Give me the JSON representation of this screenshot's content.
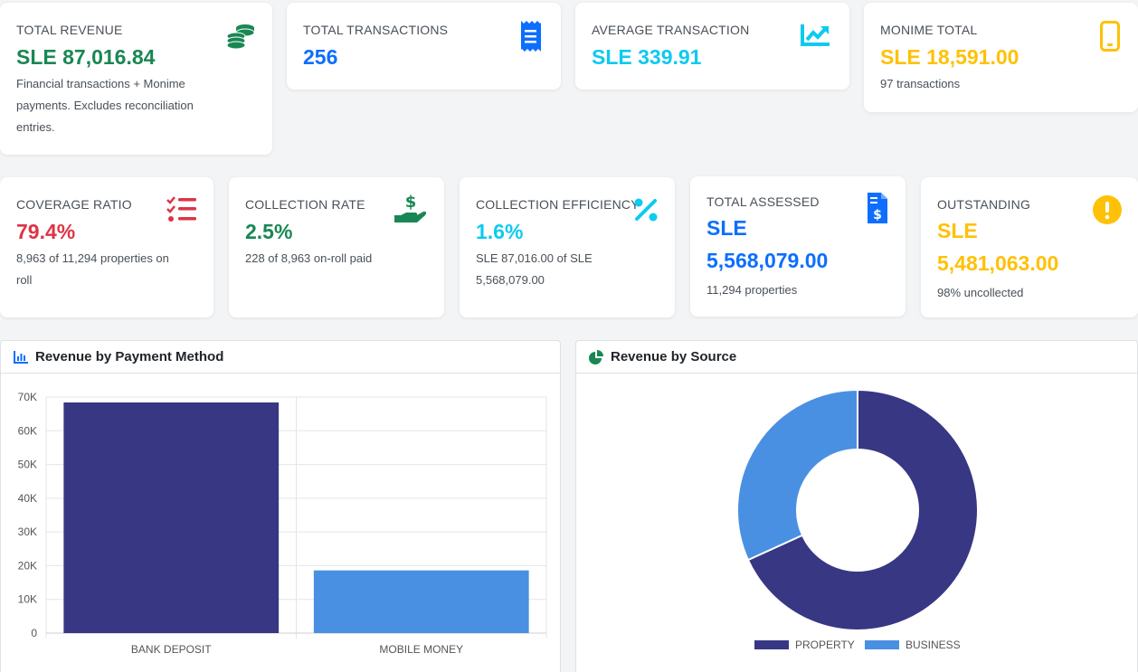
{
  "row1": [
    {
      "label": "TOTAL REVENUE",
      "value": "SLE 87,016.84",
      "sub": "Financial transactions + Monime payments. Excludes reconciliation entries.",
      "color": "#198754",
      "icon": "coins-icon"
    },
    {
      "label": "TOTAL TRANSACTIONS",
      "value": "256",
      "sub": "",
      "color": "#0d6efd",
      "icon": "receipt-icon"
    },
    {
      "label": "AVERAGE TRANSACTION",
      "value": "SLE 339.91",
      "sub": "",
      "color": "#0dcaf0",
      "icon": "chart-line-icon"
    },
    {
      "label": "MONIME TOTAL",
      "value": "SLE 18,591.00",
      "sub": "97 transactions",
      "color": "#ffc107",
      "icon": "mobile-icon"
    }
  ],
  "row2": [
    {
      "label": "COVERAGE RATIO",
      "value": "79.4%",
      "sub": "8,963 of 11,294 properties on roll",
      "color": "#dc3545",
      "icon": "checklist-icon"
    },
    {
      "label": "COLLECTION RATE",
      "value": "2.5%",
      "sub": "228 of 8,963 on-roll paid",
      "color": "#198754",
      "icon": "hand-dollar-icon"
    },
    {
      "label": "COLLECTION EFFICIENCY",
      "value": "1.6%",
      "sub": "SLE 87,016.00 of SLE 5,568,079.00",
      "color": "#0dcaf0",
      "icon": "percent-icon"
    },
    {
      "label": "TOTAL ASSESSED",
      "value_line1": "SLE",
      "value_line2": "5,568,079.00",
      "sub": "11,294 properties",
      "color": "#0d6efd",
      "icon": "invoice-dollar-icon"
    },
    {
      "label": "OUTSTANDING",
      "value_line1": "SLE",
      "value_line2": "5,481,063.00",
      "sub": "98% uncollected",
      "color": "#ffc107",
      "icon": "exclamation-circle-icon"
    }
  ],
  "panels": {
    "payment_method": {
      "title": "Revenue by Payment Method",
      "icon": "bar-chart-icon"
    },
    "source": {
      "title": "Revenue by Source",
      "icon": "pie-chart-icon"
    }
  },
  "chart_data": [
    {
      "type": "bar",
      "categories": [
        "BANK DEPOSIT",
        "MOBILE MONEY"
      ],
      "values": [
        68400,
        18600
      ],
      "colors": [
        "#373784",
        "#4a90e2"
      ],
      "ylim": [
        0,
        70000
      ],
      "yticks": [
        "0",
        "10K",
        "20K",
        "30K",
        "40K",
        "50K",
        "60K",
        "70K"
      ],
      "grid": true
    },
    {
      "type": "pie",
      "labels": [
        "PROPERTY",
        "BUSINESS"
      ],
      "values": [
        68.2,
        31.8
      ],
      "colors": [
        "#373784",
        "#4a90e2"
      ],
      "donut": true,
      "legend": "bottom"
    }
  ]
}
